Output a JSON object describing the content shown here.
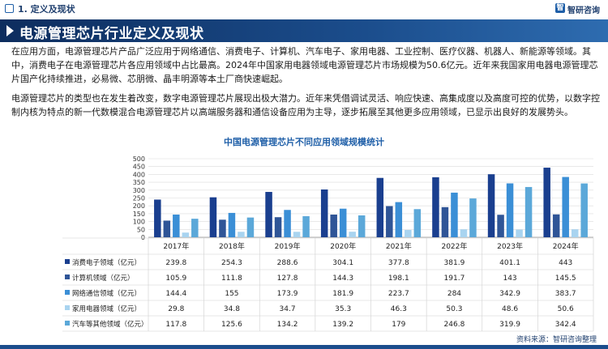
{
  "header": {
    "section": "1. 定义及现状",
    "logo": "智研咨询",
    "logo_mark": "智"
  },
  "title": "电源管理芯片行业定义及现状",
  "paragraphs": [
    "在应用方面，电源管理芯片产品广泛应用于网络通信、消费电子、计算机、汽车电子、家用电器、工业控制、医疗仪器、机器人、新能源等领域。其中，消费电子在电源管理芯片各应用领域中占比最高。2024年中国家用电器领域电源管理芯片市场规模为50.6亿元。近年来我国家用电器电源管理芯片国产化持续推进，必易微、芯朋微、晶丰明源等本土厂商快速崛起。",
    "电源管理芯片的类型也在发生着改变，数字电源管理芯片展现出极大潜力。近年来凭借调试灵活、响应快速、高集成度以及高度可控的优势，以数字控制内核为特点的新一代数模混合电源管理芯片以高端服务器和通信设备应用为主导，逐步拓展至其他更多应用领域，已显示出良好的发展势头。"
  ],
  "chart_data": {
    "type": "bar",
    "title": "中国电源管理芯片不同应用领域规模统计",
    "categories": [
      "2017年",
      "2018年",
      "2019年",
      "2020年",
      "2021年",
      "2022年",
      "2023年",
      "2024年"
    ],
    "ylim": [
      0,
      500
    ],
    "yticks": [
      0,
      50,
      100,
      150,
      200,
      250,
      300,
      350,
      400,
      450,
      500
    ],
    "grid": true,
    "series": [
      {
        "name": "消费电子领域（亿元）",
        "color": "#1a3f8f",
        "values": [
          239.8,
          254.3,
          288.6,
          304.1,
          377.8,
          381.9,
          401.1,
          443
        ]
      },
      {
        "name": "计算机领域（亿元）",
        "color": "#2f5597",
        "values": [
          105.9,
          111.8,
          127.8,
          144.3,
          198.1,
          191.7,
          143,
          145.5
        ]
      },
      {
        "name": "网络通信领域（亿元）",
        "color": "#3b8fd6",
        "values": [
          144.4,
          155,
          173.9,
          181.9,
          223.7,
          284,
          342.9,
          383.7
        ]
      },
      {
        "name": "家用电器领域（亿元）",
        "color": "#a9d4f0",
        "values": [
          29.8,
          34.8,
          34.7,
          35.3,
          46.3,
          50.3,
          48.6,
          50.6
        ]
      },
      {
        "name": "汽车等其他领域（亿元）",
        "color": "#5ba8d9",
        "values": [
          117.8,
          125.6,
          134.2,
          139.2,
          179,
          246.8,
          319.9,
          342.4
        ]
      }
    ],
    "table_labels": [
      "239.8",
      "254.3",
      "288.6",
      "304.1",
      "377.8",
      "381.9",
      "401.1",
      "443",
      "105.9",
      "111.8",
      "127.8",
      "144.3",
      "198.1",
      "191.7",
      "143",
      "145.5",
      "144.4",
      "155",
      "173.9",
      "181.9",
      "223.7",
      "284",
      "342.9",
      "383.7",
      "29.8",
      "34.8",
      "34.7",
      "35.3",
      "46.3",
      "50.3",
      "48.6",
      "50.6",
      "117.8",
      "125.6",
      "134.2",
      "139.2",
      "179",
      "246.8",
      "319.9",
      "342.4"
    ]
  },
  "source": "资料来源：智研咨询整理"
}
